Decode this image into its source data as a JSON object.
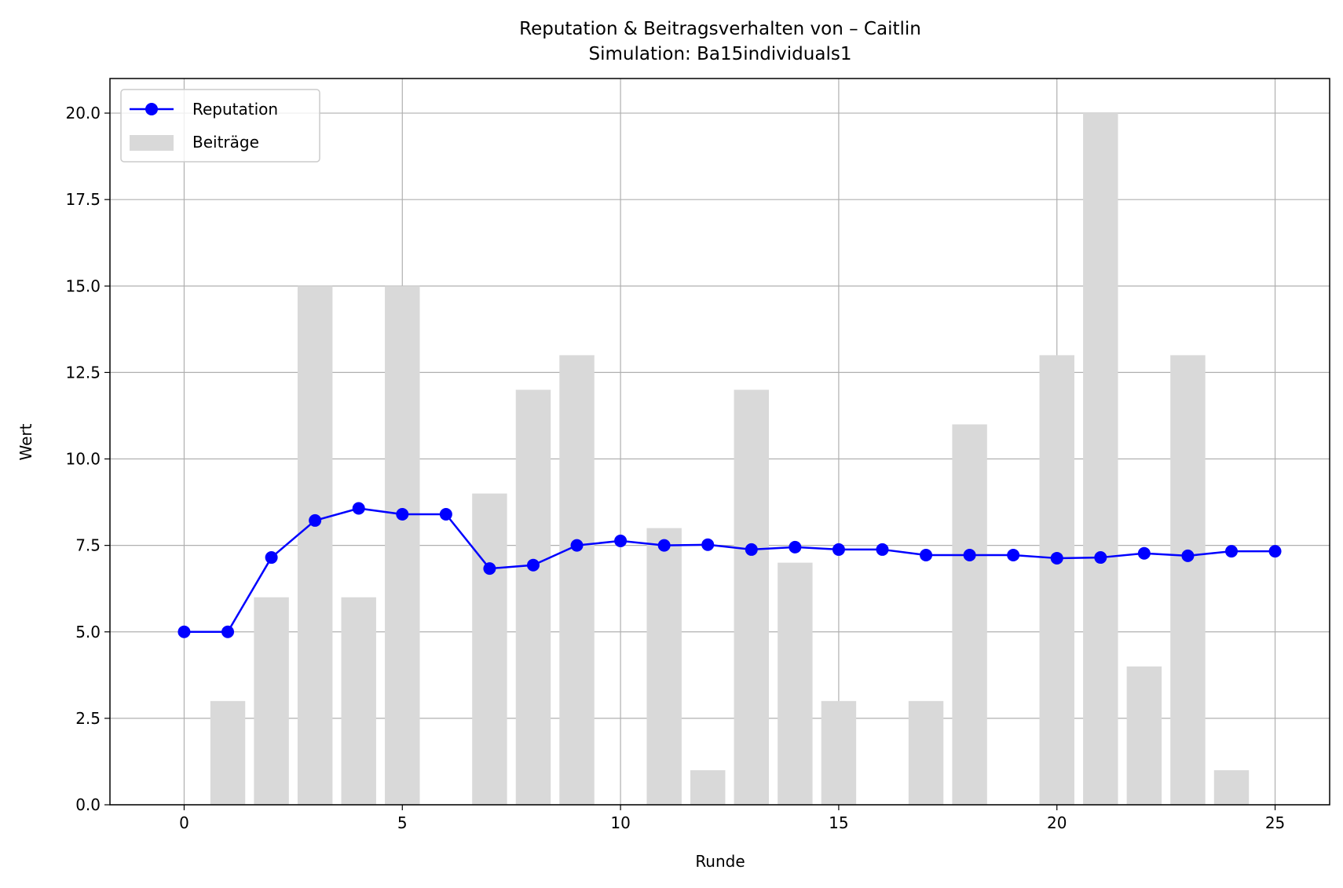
{
  "chart_data": {
    "type": "bar+line",
    "title": "Reputation & Beitragsverhalten von – Caitlin",
    "subtitle": "Simulation: Ba15individuals1",
    "xlabel": "Runde",
    "ylabel": "Wert",
    "xlim": [
      -1.7,
      26.25
    ],
    "ylim": [
      0,
      21
    ],
    "xticks": [
      0,
      5,
      10,
      15,
      20,
      25
    ],
    "xtick_labels": [
      "0",
      "5",
      "10",
      "15",
      "20",
      "25"
    ],
    "yticks": [
      0,
      2.5,
      5,
      7.5,
      10,
      12.5,
      15,
      17.5,
      20
    ],
    "ytick_labels": [
      "0.0",
      "2.5",
      "5.0",
      "7.5",
      "10.0",
      "12.5",
      "15.0",
      "17.5",
      "20.0"
    ],
    "grid": true,
    "legend_position": "top-left",
    "series": [
      {
        "name": "Reputation",
        "kind": "line",
        "color": "#0000ff",
        "marker": "circle",
        "x": [
          0,
          1,
          2,
          3,
          4,
          5,
          6,
          7,
          8,
          9,
          10,
          11,
          12,
          13,
          14,
          15,
          16,
          17,
          18,
          19,
          20,
          21,
          22,
          23,
          24,
          25
        ],
        "values": [
          5.0,
          5.0,
          7.15,
          8.22,
          8.57,
          8.4,
          8.4,
          6.83,
          6.93,
          7.5,
          7.63,
          7.5,
          7.52,
          7.38,
          7.45,
          7.38,
          7.38,
          7.22,
          7.22,
          7.22,
          7.13,
          7.15,
          7.27,
          7.2,
          7.33,
          7.33
        ]
      },
      {
        "name": "Beiträge",
        "kind": "bar",
        "color": "#d9d9d9",
        "x": [
          0,
          1,
          2,
          3,
          4,
          5,
          6,
          7,
          8,
          9,
          10,
          11,
          12,
          13,
          14,
          15,
          16,
          17,
          18,
          19,
          20,
          21,
          22,
          23,
          24,
          25
        ],
        "values": [
          0,
          3,
          6,
          15,
          6,
          15,
          0,
          9,
          12,
          13,
          0,
          8,
          1,
          12,
          7,
          3,
          0,
          3,
          11,
          0,
          13,
          20,
          4,
          13,
          1,
          0
        ]
      }
    ]
  }
}
